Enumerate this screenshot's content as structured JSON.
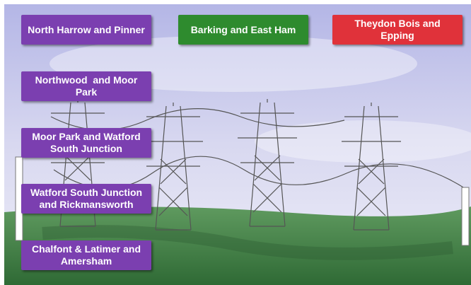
{
  "buttons": [
    {
      "label": "North Harrow and Pinner",
      "color": "#7b3fb0"
    },
    {
      "label": "Barking and East Ham",
      "color": "#2e8b2e"
    },
    {
      "label": "Theydon Bois and Epping",
      "color": "#e0323a"
    },
    {
      "label": "Northwood  and Moor Park",
      "color": "#7b3fb0"
    },
    {
      "label": "Moor Park and Watford South Junction",
      "color": "#7b3fb0"
    },
    {
      "label": "Watford South Junction and Rickmansworth",
      "color": "#7b3fb0"
    },
    {
      "label": "Chalfont & Latimer and Amersham",
      "color": "#7b3fb0"
    }
  ]
}
